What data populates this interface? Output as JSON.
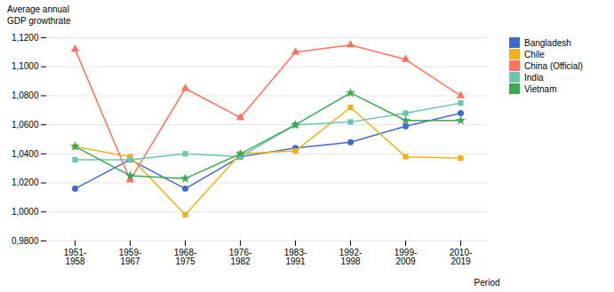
{
  "chart_data": {
    "type": "line",
    "categories": [
      "1951-\n1958",
      "1959-\n1967",
      "1968-\n1975",
      "1976-\n1982",
      "1983-\n1991",
      "1992-\n1998",
      "1999-\n2009",
      "2010-\n2019"
    ],
    "series": [
      {
        "name": "Bangladesh",
        "marker": "circle",
        "values": [
          1.016,
          1.036,
          1.016,
          1.038,
          1.044,
          1.048,
          1.059,
          1.068
        ]
      },
      {
        "name": "Chile",
        "marker": "square",
        "values": [
          1.045,
          1.038,
          0.998,
          1.04,
          1.042,
          1.072,
          1.038,
          1.037
        ]
      },
      {
        "name": "China (Official)",
        "marker": "triangle",
        "values": [
          1.112,
          1.022,
          1.085,
          1.065,
          1.11,
          1.115,
          1.105,
          1.08
        ]
      },
      {
        "name": "India",
        "marker": "square",
        "values": [
          1.036,
          1.036,
          1.04,
          1.038,
          1.06,
          1.062,
          1.068,
          1.075
        ]
      },
      {
        "name": "Vietnam",
        "marker": "star",
        "values": [
          1.045,
          1.025,
          1.023,
          1.04,
          1.06,
          1.082,
          1.063,
          1.063
        ]
      }
    ],
    "ylabel": "Average annual\nGDP growthrate",
    "xlabel": "Period",
    "ylim": [
      0.98,
      1.12
    ],
    "yticks": [
      {
        "value": 0.98,
        "label": "0,9800"
      },
      {
        "value": 1.0,
        "label": "1,0000"
      },
      {
        "value": 1.02,
        "label": "1,0200"
      },
      {
        "value": 1.04,
        "label": "1,0400"
      },
      {
        "value": 1.06,
        "label": "1,0600"
      },
      {
        "value": 1.08,
        "label": "1,0800"
      },
      {
        "value": 1.1,
        "label": "1,1000"
      },
      {
        "value": 1.12,
        "label": "1,1200"
      }
    ],
    "grid": true,
    "legend": "right"
  }
}
